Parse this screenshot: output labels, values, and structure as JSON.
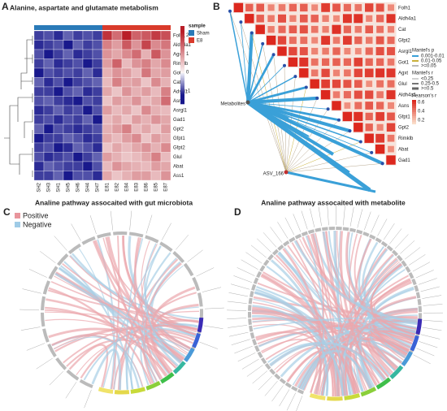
{
  "panels": {
    "a": {
      "letter": "A",
      "title": "Alanine, aspartate and glutamate metabolism",
      "genes": [
        "Folh1",
        "Aldh4a1",
        "Agxt",
        "Rimklb",
        "Got1",
        "Cat",
        "Adssl1",
        "Asns",
        "Asrgl1",
        "Gad1",
        "Gpt2",
        "Gfpt1",
        "Gfpt2",
        "Glul",
        "Abat",
        "Ass1"
      ],
      "samples": [
        "SH2",
        "SH3",
        "SH1",
        "SH5",
        "SH6",
        "SH4",
        "SH7",
        "E81",
        "E82",
        "E84",
        "E83",
        "E86",
        "E85",
        "E87"
      ],
      "sample_legend": {
        "title": "sample",
        "groups": [
          {
            "name": "Sham",
            "color": "#2a7ab8"
          },
          {
            "name": "E8",
            "color": "#d93a2b"
          }
        ]
      },
      "colorbar": {
        "ticks": [
          2,
          1,
          0,
          -1
        ],
        "lim": [
          -1.7,
          2.5
        ]
      },
      "values": [
        [
          -1.0,
          -0.9,
          -1.1,
          -0.8,
          -1.0,
          -0.9,
          -1.0,
          2.0,
          1.4,
          2.2,
          1.5,
          1.6,
          1.9,
          1.7
        ],
        [
          -1.1,
          -1.0,
          -0.9,
          -1.2,
          -0.8,
          -1.0,
          -0.9,
          1.2,
          0.9,
          1.6,
          1.0,
          1.8,
          1.1,
          1.3
        ],
        [
          -0.9,
          -1.2,
          -1.0,
          -0.8,
          -1.1,
          -1.0,
          -0.9,
          1.0,
          0.8,
          1.1,
          1.4,
          0.7,
          1.6,
          1.0
        ],
        [
          -1.0,
          -0.8,
          -1.1,
          -1.0,
          -0.9,
          -1.2,
          -1.0,
          0.9,
          1.5,
          0.6,
          1.0,
          1.2,
          0.8,
          1.1
        ],
        [
          -1.2,
          -0.9,
          -1.0,
          -0.9,
          -1.0,
          -0.8,
          -1.1,
          0.7,
          1.0,
          0.9,
          0.6,
          1.3,
          0.8,
          0.9
        ],
        [
          -0.8,
          -1.1,
          -0.9,
          -1.2,
          -1.0,
          -0.9,
          -0.8,
          0.6,
          1.2,
          0.8,
          0.9,
          0.5,
          1.1,
          0.7
        ],
        [
          -1.0,
          -1.0,
          -1.2,
          -0.9,
          -0.8,
          -1.1,
          -1.0,
          0.8,
          0.5,
          1.0,
          0.7,
          0.9,
          0.6,
          1.2
        ],
        [
          -0.9,
          -0.8,
          -1.0,
          -1.1,
          -1.2,
          -0.9,
          -1.0,
          0.5,
          0.9,
          0.7,
          1.0,
          0.6,
          0.8,
          1.4
        ],
        [
          -1.1,
          -1.0,
          -0.8,
          -1.0,
          -0.9,
          -1.2,
          -0.9,
          0.9,
          0.6,
          0.8,
          0.5,
          1.1,
          0.7,
          0.6
        ],
        [
          -1.0,
          -0.9,
          -1.1,
          -0.9,
          -1.0,
          -0.8,
          -1.2,
          0.6,
          0.8,
          0.5,
          0.9,
          0.7,
          1.0,
          0.8
        ],
        [
          -0.8,
          -1.2,
          -0.9,
          -1.0,
          -1.1,
          -1.0,
          -0.9,
          0.7,
          0.9,
          1.2,
          0.6,
          0.8,
          0.5,
          0.9
        ],
        [
          -1.2,
          -1.0,
          -1.0,
          -0.8,
          -0.9,
          -1.1,
          -1.0,
          0.8,
          0.6,
          0.9,
          1.1,
          0.5,
          0.9,
          0.7
        ],
        [
          -1.0,
          -0.9,
          -1.2,
          -1.1,
          -0.8,
          -0.9,
          -1.1,
          0.5,
          0.8,
          0.6,
          0.8,
          1.0,
          0.7,
          1.1
        ],
        [
          -0.9,
          -1.1,
          -1.0,
          -0.9,
          -1.2,
          -1.0,
          -0.8,
          0.9,
          0.7,
          0.5,
          0.6,
          0.8,
          1.2,
          0.6
        ],
        [
          -1.1,
          -0.8,
          -0.9,
          -1.0,
          -1.0,
          -1.2,
          -0.9,
          0.6,
          1.0,
          0.8,
          0.7,
          0.6,
          0.9,
          0.8
        ],
        [
          -1.0,
          -1.0,
          -0.8,
          -1.2,
          -0.9,
          -0.9,
          -1.1,
          0.8,
          0.5,
          0.7,
          0.9,
          0.9,
          0.6,
          1.0
        ]
      ]
    },
    "b": {
      "letter": "B",
      "genes": [
        "Folh1",
        "Aldh4a1",
        "Cat",
        "Gfpt2",
        "Asrgl1",
        "Got1",
        "Agxt",
        "Glul",
        "Aldh4a1",
        "Asns",
        "Gfpt1",
        "Gpt2",
        "Rimklb",
        "Abat",
        "Gad1"
      ],
      "nodes": [
        "Metabolites",
        "ASV_166"
      ],
      "legend_p": {
        "title": "Mantel's p",
        "items": [
          "0.001-0.01",
          "0.01-0.05",
          ">=0.05"
        ]
      },
      "legend_r": {
        "title": "Mantel's r",
        "items": [
          "<0.25",
          "0.25-0.5",
          ">=0.5"
        ]
      },
      "legend_pearson": {
        "title": "Pearson's r",
        "ticks": [
          "0.6",
          "0.4",
          "0.2"
        ]
      }
    },
    "c": {
      "letter": "C",
      "title": "Analine pathway assocaited with gut microbiota",
      "legend": [
        "Positive",
        "Negative"
      ]
    },
    "d": {
      "letter": "D",
      "title": "Analine pathway assocaited with metabolite"
    }
  }
}
